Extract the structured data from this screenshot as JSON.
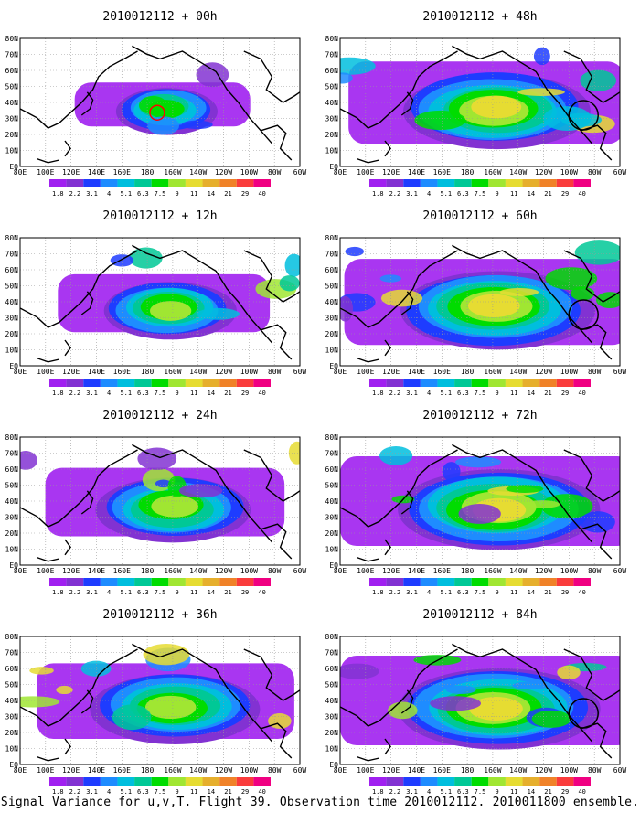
{
  "caption": "Signal Variance for u,v,T. Flight 39. Observation time 2010012112. 2010011800 ensemble.",
  "colorbar": {
    "levels": [
      "1.8",
      "2.2",
      "3.1",
      "4",
      "5.1",
      "6.3",
      "7.5",
      "9",
      "11",
      "14",
      "21",
      "29",
      "40"
    ],
    "colors": [
      "#a020f0",
      "#8232d2",
      "#1e3cff",
      "#1e8cff",
      "#00bede",
      "#00c896",
      "#00dc00",
      "#a0e632",
      "#e6dc32",
      "#e6af2d",
      "#f08228",
      "#fa3c3c",
      "#f00082"
    ]
  },
  "map": {
    "lon_labels": [
      "80E",
      "100E",
      "120E",
      "140E",
      "160E",
      "180",
      "160W",
      "140W",
      "120W",
      "100W",
      "80W",
      "60W"
    ],
    "lat_labels": [
      "80N",
      "70N",
      "60N",
      "50N",
      "40N",
      "30N",
      "20N",
      "10N",
      "EQ"
    ]
  },
  "panels": [
    {
      "title": "2010012112 + 00h",
      "intensity": 0.55,
      "spread": 0.35,
      "marker": "red"
    },
    {
      "title": "2010012112 + 12h",
      "intensity": 0.6,
      "spread": 0.55,
      "marker": ""
    },
    {
      "title": "2010012112 + 24h",
      "intensity": 0.65,
      "spread": 0.7,
      "marker": ""
    },
    {
      "title": "2010012112 + 36h",
      "intensity": 0.7,
      "spread": 0.8,
      "marker": ""
    },
    {
      "title": "2010012112 + 48h",
      "intensity": 0.75,
      "spread": 0.9,
      "marker": "black"
    },
    {
      "title": "2010012112 + 60h",
      "intensity": 0.8,
      "spread": 0.95,
      "marker": "black"
    },
    {
      "title": "2010012112 + 72h",
      "intensity": 0.85,
      "spread": 1.0,
      "marker": ""
    },
    {
      "title": "2010012112 + 84h",
      "intensity": 0.9,
      "spread": 1.0,
      "marker": "black"
    }
  ]
}
